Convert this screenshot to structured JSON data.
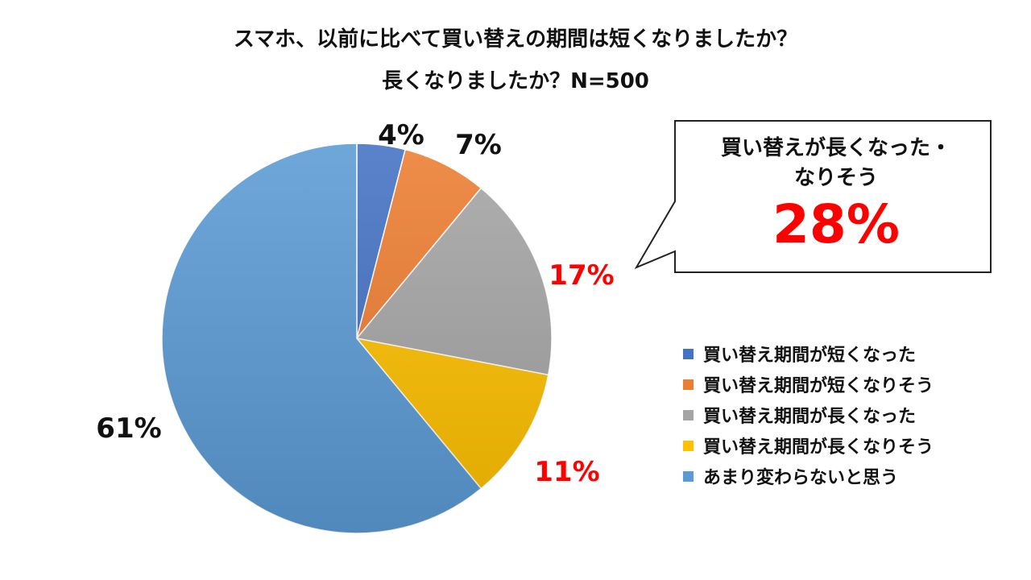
{
  "title_line1": "スマホ、以前に比べて買い替えの期間は短くなりましたか？",
  "title_line2": "長くなりましたか？N=500",
  "callout": {
    "line1": "買い替えが長くなった・",
    "line2": "なりそう",
    "value": "28%"
  },
  "chart_data": {
    "type": "pie",
    "title": "スマホ、以前に比べて買い替えの期間は短くなりましたか？長くなりましたか？N=500",
    "categories": [
      "買い替え期間が短くなった",
      "買い替え期間が短くなりそう",
      "買い替え期間が長くなった",
      "買い替え期間が長くなりそう",
      "あまり変わらないと思う"
    ],
    "values": [
      4,
      7,
      17,
      11,
      61
    ],
    "labels": [
      "4%",
      "7%",
      "17%",
      "11%",
      "61%"
    ],
    "colors": [
      "#4472c4",
      "#ed7d31",
      "#a5a5a5",
      "#ffc000",
      "#5b9bd5"
    ],
    "highlight_label_color": "#ff0000",
    "legend_position": "right"
  }
}
